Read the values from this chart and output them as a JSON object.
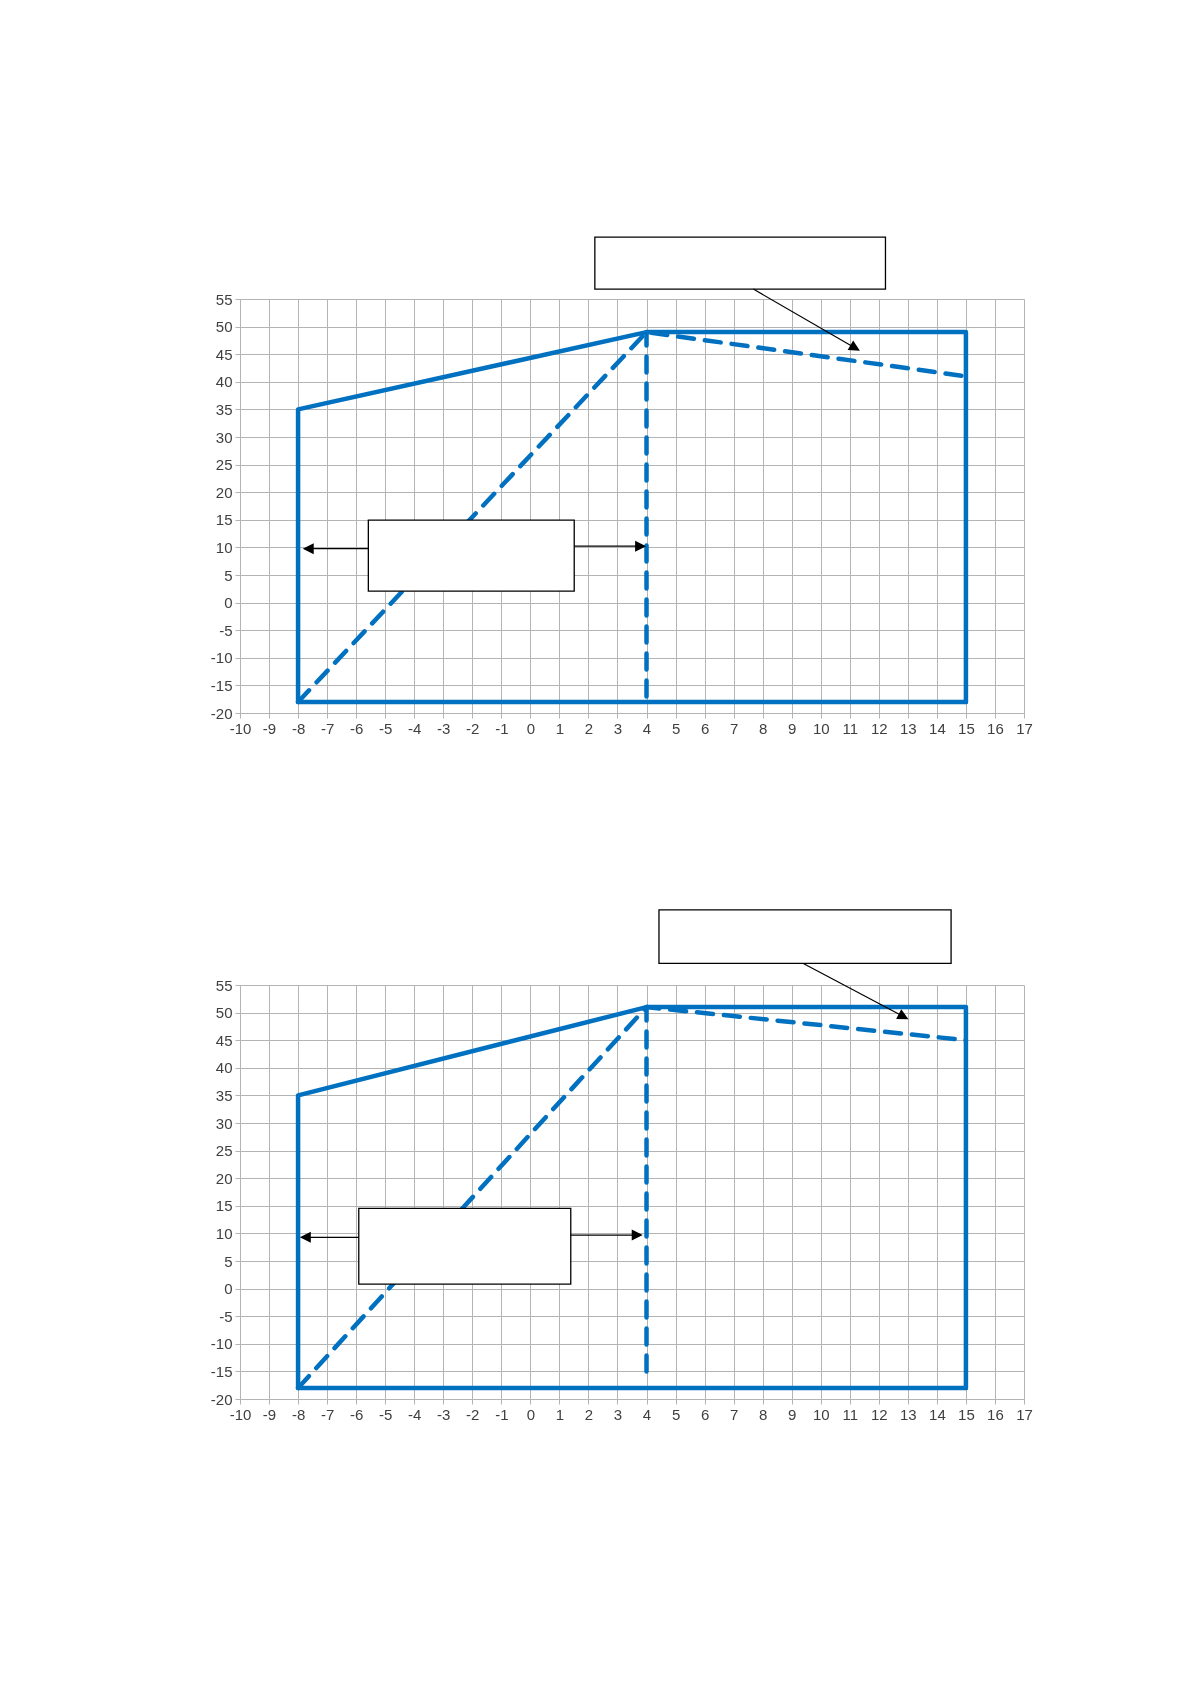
{
  "chart_data": [
    {
      "type": "line",
      "xlim": [
        -10,
        17
      ],
      "xticks": [
        -10,
        -9,
        -8,
        -7,
        -6,
        -5,
        -4,
        -3,
        -2,
        -1,
        0,
        1,
        2,
        3,
        4,
        5,
        6,
        7,
        8,
        9,
        10,
        11,
        12,
        13,
        14,
        15,
        16,
        17
      ],
      "ylim": [
        -20,
        55
      ],
      "yticks": [
        -20,
        -15,
        -10,
        -5,
        0,
        5,
        10,
        15,
        20,
        25,
        30,
        35,
        40,
        45,
        50,
        55
      ],
      "grid": true,
      "series": [
        {
          "color": "#0070c0",
          "line_style": "solid",
          "x": [
            -8,
            -8,
            4,
            15,
            15
          ],
          "values": [
            -18,
            35,
            49,
            49,
            -18
          ]
        },
        {
          "color": "#0070c0",
          "line_style": "solid",
          "x": [
            -8,
            15
          ],
          "values": [
            -18,
            -18
          ]
        },
        {
          "color": "#0070c0",
          "line_style": "dashed",
          "x": [
            -8,
            4,
            15
          ],
          "values": [
            -18,
            49,
            41
          ]
        },
        {
          "color": "#0070c0",
          "line_style": "dashed",
          "x": [
            4,
            4
          ],
          "values": [
            -17,
            49
          ]
        }
      ]
    },
    {
      "type": "line",
      "xlim": [
        -10,
        17
      ],
      "xticks": [
        -10,
        -9,
        -8,
        -7,
        -6,
        -5,
        -4,
        -3,
        -2,
        -1,
        0,
        1,
        2,
        3,
        4,
        5,
        6,
        7,
        8,
        9,
        10,
        11,
        12,
        13,
        14,
        15,
        16,
        17
      ],
      "ylim": [
        -20,
        55
      ],
      "yticks": [
        -20,
        -15,
        -10,
        -5,
        0,
        5,
        10,
        15,
        20,
        25,
        30,
        35,
        40,
        45,
        50,
        55
      ],
      "grid": true,
      "series": [
        {
          "color": "#0070c0",
          "line_style": "solid",
          "x": [
            -8,
            -8,
            4,
            15,
            15
          ],
          "values": [
            -18,
            35,
            51,
            51,
            -18
          ]
        },
        {
          "color": "#0070c0",
          "line_style": "solid",
          "x": [
            -8,
            15
          ],
          "values": [
            -18,
            -18
          ]
        },
        {
          "color": "#0070c0",
          "line_style": "dashed",
          "x": [
            -8,
            4,
            15
          ],
          "values": [
            -18,
            51,
            45
          ]
        },
        {
          "color": "#0070c0",
          "line_style": "dashed",
          "x": [
            4,
            4
          ],
          "values": [
            -15,
            51
          ]
        }
      ]
    }
  ]
}
